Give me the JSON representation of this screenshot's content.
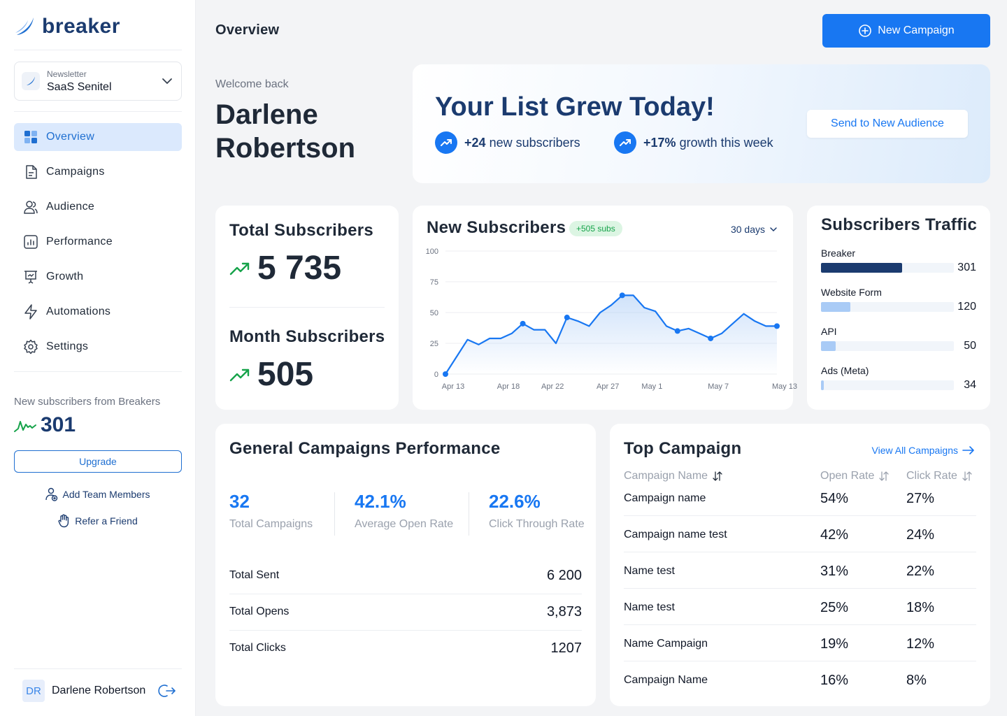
{
  "app": {
    "logo": "breaker"
  },
  "newsletter": {
    "label": "Newsletter",
    "name": "SaaS Senitel"
  },
  "nav": [
    {
      "label": "Overview",
      "icon": "grid-icon",
      "active": true
    },
    {
      "label": "Campaigns",
      "icon": "document-icon"
    },
    {
      "label": "Audience",
      "icon": "users-icon"
    },
    {
      "label": "Performance",
      "icon": "chart-icon"
    },
    {
      "label": "Growth",
      "icon": "presentation-icon"
    },
    {
      "label": "Automations",
      "icon": "bolt-icon"
    },
    {
      "label": "Settings",
      "icon": "gear-icon"
    }
  ],
  "breakers": {
    "label": "New subscribers from Breakers",
    "value": "301"
  },
  "sidebar_actions": {
    "upgrade": "Upgrade",
    "add_team": "Add Team Members",
    "refer": "Refer a Friend"
  },
  "user": {
    "initials": "DR",
    "name": "Darlene Robertson"
  },
  "header": {
    "title": "Overview",
    "new_campaign": "New Campaign"
  },
  "welcome": {
    "label": "Welcome back",
    "name": "Darlene Robertson"
  },
  "banner": {
    "title": "Your List Grew Today!",
    "stat1_value": "+24",
    "stat1_text": "new subscribers",
    "stat2_value": "+17%",
    "stat2_text": "growth this week",
    "button": "Send to New Audience"
  },
  "totals": {
    "total_label": "Total Subscribers",
    "total_value": "5 735",
    "month_label": "Month Subscribers",
    "month_value": "505"
  },
  "new_subs": {
    "title": "New Subscribers",
    "badge": "+505 subs",
    "range": "30 days"
  },
  "chart_data": {
    "type": "line",
    "title": "New Subscribers",
    "x_ticks": [
      "Apr 13",
      "Apr 18",
      "Apr 22",
      "Apr 27",
      "May 1",
      "May 7",
      "May 13"
    ],
    "y_ticks": [
      0,
      25,
      50,
      75,
      100
    ],
    "ylim": [
      0,
      100
    ],
    "x": [
      "Apr 13",
      "Apr 14",
      "Apr 15",
      "Apr 16",
      "Apr 17",
      "Apr 18",
      "Apr 19",
      "Apr 20",
      "Apr 21",
      "Apr 22",
      "Apr 23",
      "Apr 24",
      "Apr 25",
      "Apr 26",
      "Apr 27",
      "Apr 28",
      "Apr 29",
      "Apr 30",
      "May 1",
      "May 2",
      "May 3",
      "May 4",
      "May 5",
      "May 6",
      "May 7",
      "May 8",
      "May 9",
      "May 10",
      "May 11",
      "May 12",
      "May 13"
    ],
    "values": [
      0,
      14,
      28,
      24,
      29,
      29,
      33,
      41,
      36,
      36,
      25,
      46,
      43,
      39,
      50,
      56,
      64,
      64,
      54,
      51,
      39,
      35,
      37,
      33,
      29,
      33,
      41,
      49,
      43,
      39,
      39
    ],
    "markers": [
      0,
      7,
      11,
      16,
      21,
      24,
      30
    ]
  },
  "traffic": {
    "title": "Subscribers Traffic",
    "items": [
      {
        "label": "Breaker",
        "value": 301,
        "color": "#1b3b6f",
        "level": 0.61
      },
      {
        "label": "Website Form",
        "value": 120,
        "color": "#a9cbf6",
        "level": 0.22
      },
      {
        "label": "API",
        "value": 50,
        "color": "#a9cbf6",
        "level": 0.11
      },
      {
        "label": "Ads (Meta)",
        "value": 34,
        "color": "#a9cbf6",
        "level": 0.02
      }
    ]
  },
  "performance": {
    "title": "General Campaigns Performance",
    "stats": [
      {
        "value": "32",
        "label": "Total Campaigns"
      },
      {
        "value": "42.1%",
        "label": "Average Open Rate"
      },
      {
        "value": "22.6%",
        "label": "Click Through Rate"
      }
    ],
    "rows": [
      {
        "label": "Total Sent",
        "value": "6 200"
      },
      {
        "label": "Total Opens",
        "value": "3,873"
      },
      {
        "label": "Total Clicks",
        "value": "1207"
      }
    ]
  },
  "top_campaign": {
    "title": "Top Campaign",
    "view_all": "View All Campaigns",
    "headers": {
      "name": "Campaign Name",
      "open": "Open Rate",
      "click": "Click Rate"
    },
    "rows": [
      {
        "name": "Campaign name",
        "open": "54%",
        "click": "27%"
      },
      {
        "name": "Campaign name test",
        "open": "42%",
        "click": "24%"
      },
      {
        "name": "Name test",
        "open": "31%",
        "click": "22%"
      },
      {
        "name": "Name test",
        "open": "25%",
        "click": "18%"
      },
      {
        "name": "Name Campaign",
        "open": "19%",
        "click": "12%"
      },
      {
        "name": "Campaign Name",
        "open": "16%",
        "click": "8%"
      }
    ]
  },
  "colors": {
    "accent": "#1877f2",
    "navy": "#1b3b6f",
    "green": "#16a34a"
  }
}
